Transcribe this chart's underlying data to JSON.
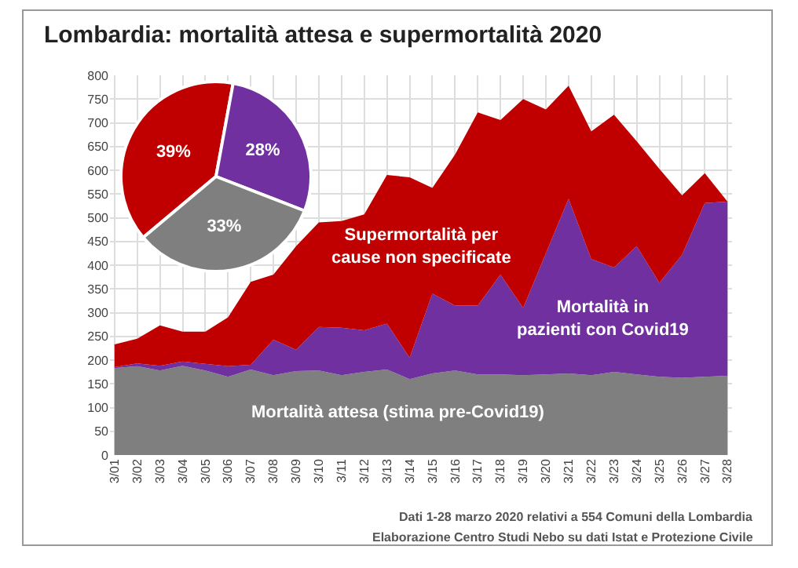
{
  "chart_data": [
    {
      "type": "area",
      "title": "Lombardia: mortalità attesa e supermortalità 2020",
      "categories": [
        "3/01",
        "3/02",
        "3/03",
        "3/04",
        "3/05",
        "3/06",
        "3/07",
        "3/08",
        "3/09",
        "3/10",
        "3/11",
        "3/12",
        "3/13",
        "3/14",
        "3/15",
        "3/16",
        "3/17",
        "3/18",
        "3/19",
        "3/20",
        "3/21",
        "3/22",
        "3/23",
        "3/24",
        "3/25",
        "3/26",
        "3/27",
        "3/28"
      ],
      "stacked": true,
      "series": [
        {
          "name": "Mortalità attesa (stima pre-Covid19)",
          "color": "#7f7f7f",
          "values": [
            183,
            187,
            178,
            188,
            178,
            165,
            180,
            168,
            177,
            178,
            168,
            175,
            180,
            160,
            172,
            178,
            170,
            170,
            168,
            170,
            172,
            168,
            175,
            170,
            165,
            163,
            165,
            167
          ]
        },
        {
          "name": "Mortalità in pazienti con Covid19",
          "color": "#7030a0",
          "values": [
            2,
            6,
            10,
            9,
            14,
            22,
            10,
            75,
            45,
            92,
            100,
            88,
            97,
            45,
            168,
            137,
            145,
            210,
            142,
            255,
            368,
            245,
            220,
            270,
            198,
            259,
            366,
            367
          ]
        },
        {
          "name": "Supermortalità per cause non specificate",
          "color": "#c00000",
          "values": [
            48,
            52,
            85,
            63,
            68,
            103,
            175,
            137,
            218,
            220,
            225,
            244,
            313,
            380,
            223,
            318,
            407,
            326,
            440,
            303,
            238,
            269,
            322,
            221,
            240,
            125,
            63,
            0
          ]
        }
      ],
      "ylim": [
        0,
        800
      ],
      "yticks": [
        0,
        50,
        100,
        150,
        200,
        250,
        300,
        350,
        400,
        450,
        500,
        550,
        600,
        650,
        700,
        750,
        800
      ],
      "grid": true,
      "legend": false,
      "annotations": [
        "Dati 1-28 marzo 2020 relativi a 554 Comuni della Lombardia",
        "Elaborazione Centro Studi Nebo su dati Istat e Protezione Civile"
      ]
    },
    {
      "type": "pie",
      "categories": [
        null,
        null,
        null
      ],
      "values": [
        39,
        28,
        33
      ],
      "colors": [
        "#c00000",
        "#7030a0",
        "#7f7f7f"
      ],
      "value_labels": [
        "39%",
        "28%",
        "33%"
      ]
    }
  ]
}
